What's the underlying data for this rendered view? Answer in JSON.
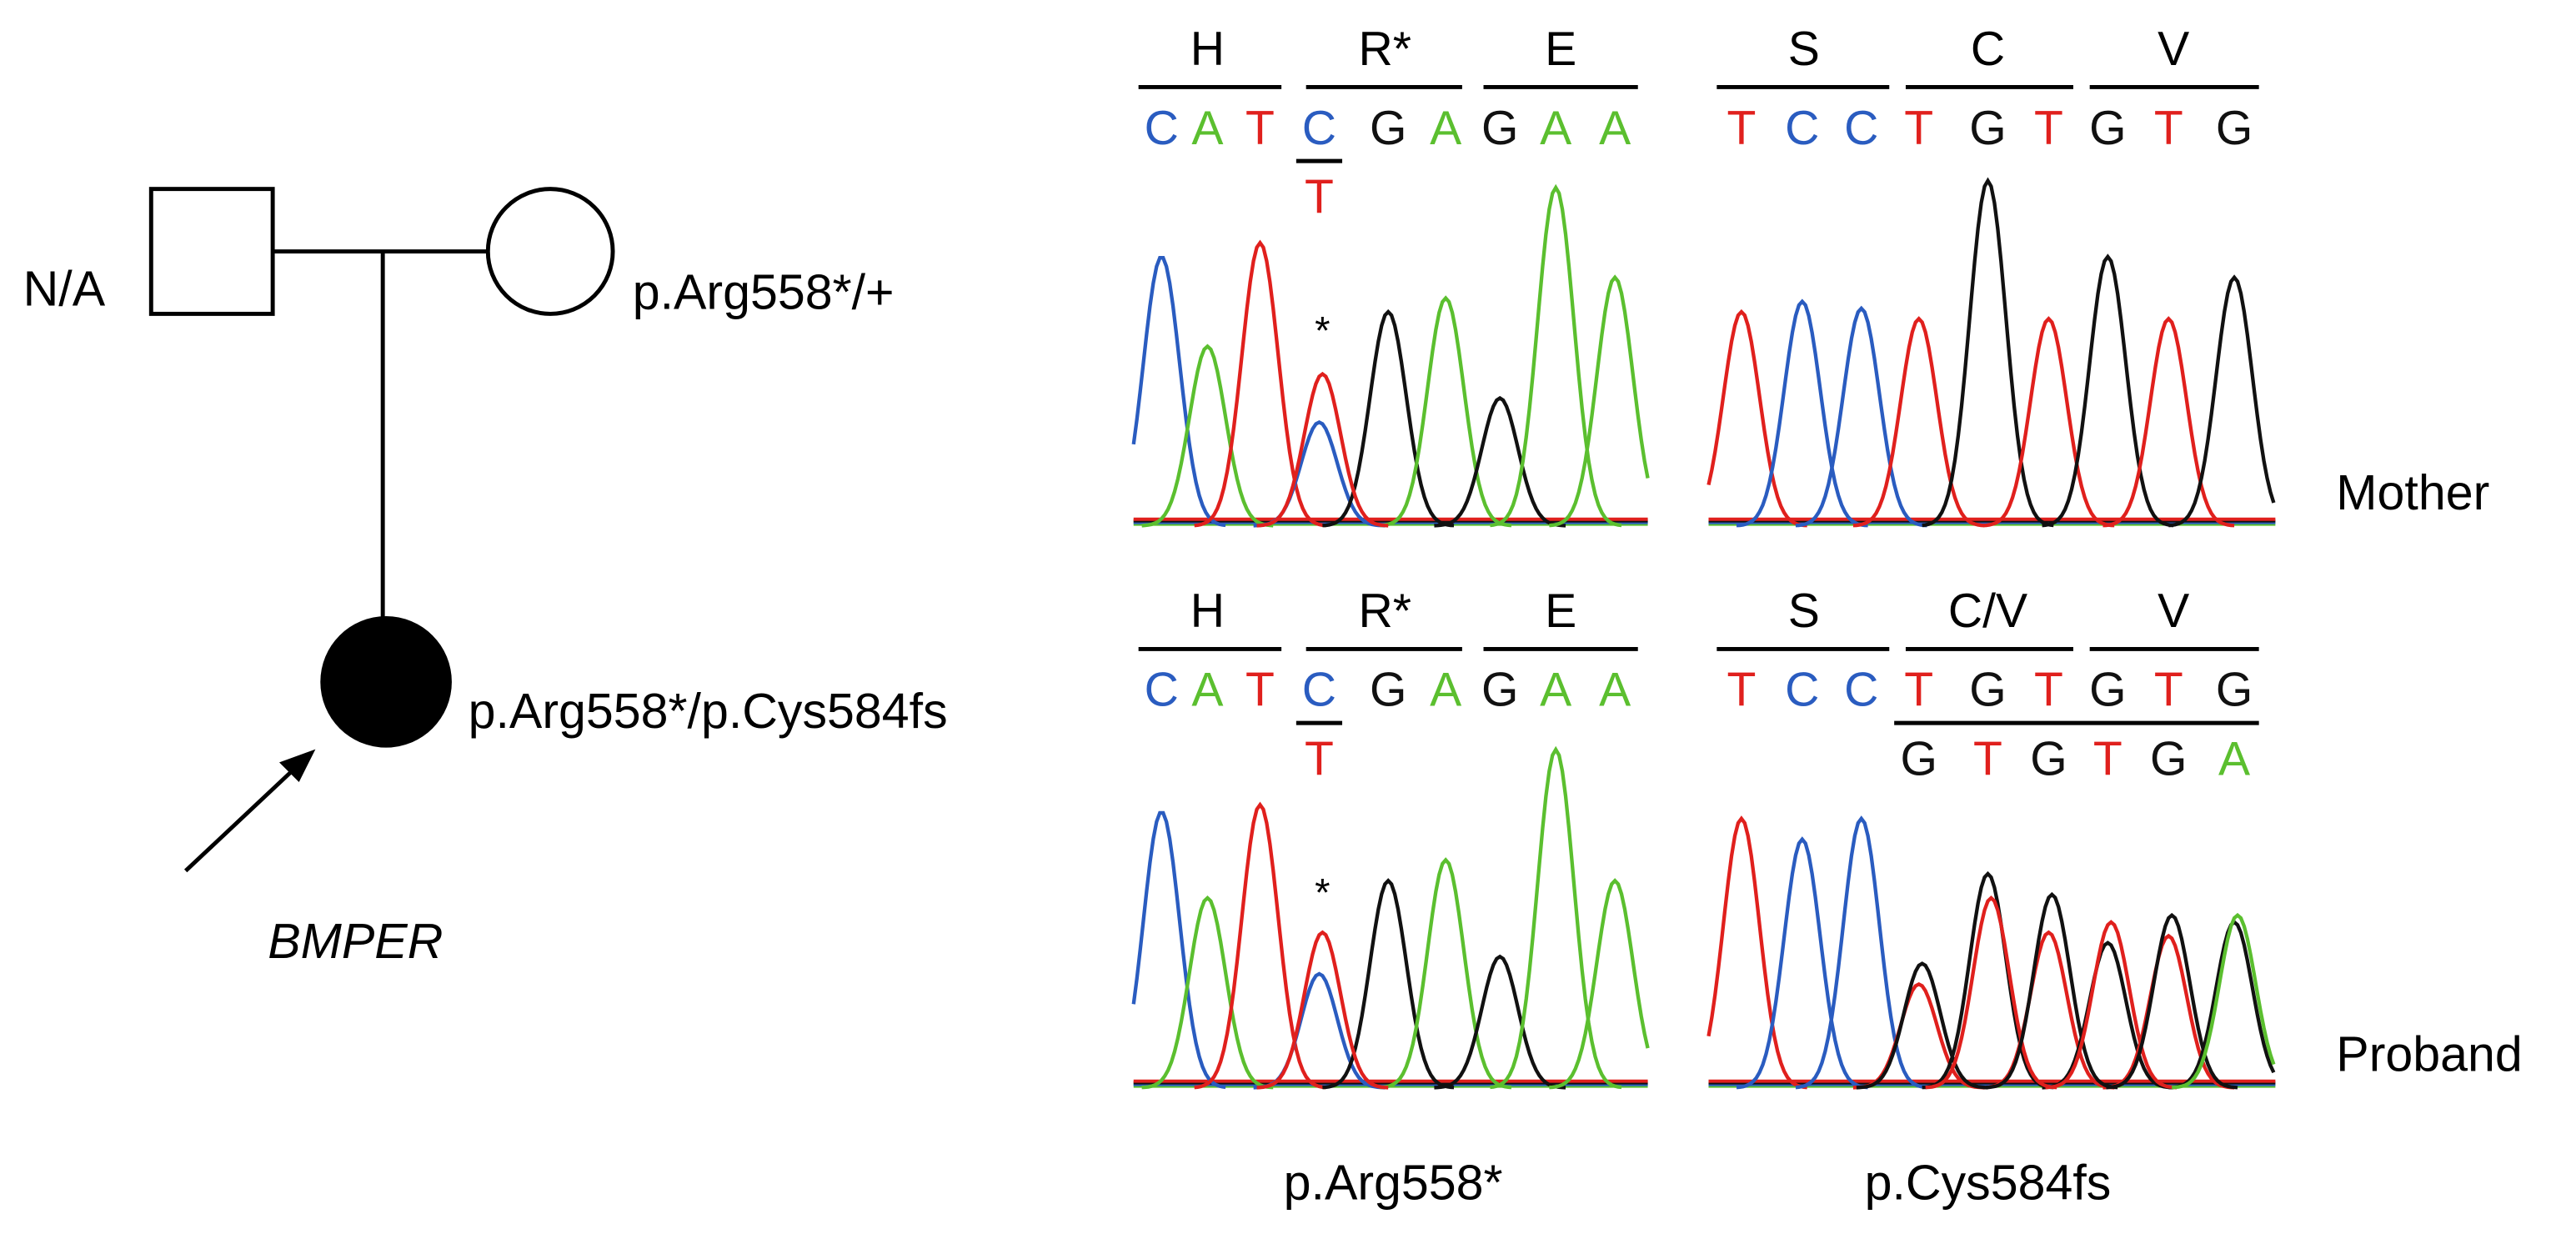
{
  "pedigree": {
    "father_label": "N/A",
    "mother_label": "p.Arg558*/+",
    "proband_label": "p.Arg558*/p.Cys584fs",
    "gene": "BMPER"
  },
  "row_labels": [
    "Mother",
    "Proband"
  ],
  "column_labels": [
    "p.Arg558*",
    "p.Cys584fs"
  ],
  "base_colors": {
    "A": "#5bbf2f",
    "C": "#2a5cc0",
    "G": "#111111",
    "T": "#e0201d"
  },
  "panels": [
    {
      "codons": [
        "H",
        "R*",
        "E"
      ],
      "bases": [
        "C",
        "A",
        "T",
        "C",
        "G",
        "A",
        "G",
        "A",
        "A"
      ],
      "alt_bases": [
        null,
        null,
        null,
        "T",
        null,
        null,
        null,
        null,
        null
      ],
      "marker": "*"
    },
    {
      "codons": [
        "S",
        "C",
        "V"
      ],
      "bases": [
        "T",
        "C",
        "C",
        "T",
        "G",
        "T",
        "G",
        "T",
        "G"
      ]
    },
    {
      "codons": [
        "H",
        "R*",
        "E"
      ],
      "bases": [
        "C",
        "A",
        "T",
        "C",
        "G",
        "A",
        "G",
        "A",
        "A"
      ],
      "alt_bases": [
        null,
        null,
        null,
        "T",
        null,
        null,
        null,
        null,
        null
      ],
      "marker": "*"
    },
    {
      "codons": [
        "S",
        "C/V",
        "V"
      ],
      "bases": [
        "T",
        "C",
        "C",
        "T",
        "G",
        "T",
        "G",
        "T",
        "G"
      ],
      "alt_bases": [
        null,
        null,
        null,
        "G",
        "T",
        "G",
        "T",
        "G",
        "A"
      ]
    }
  ]
}
